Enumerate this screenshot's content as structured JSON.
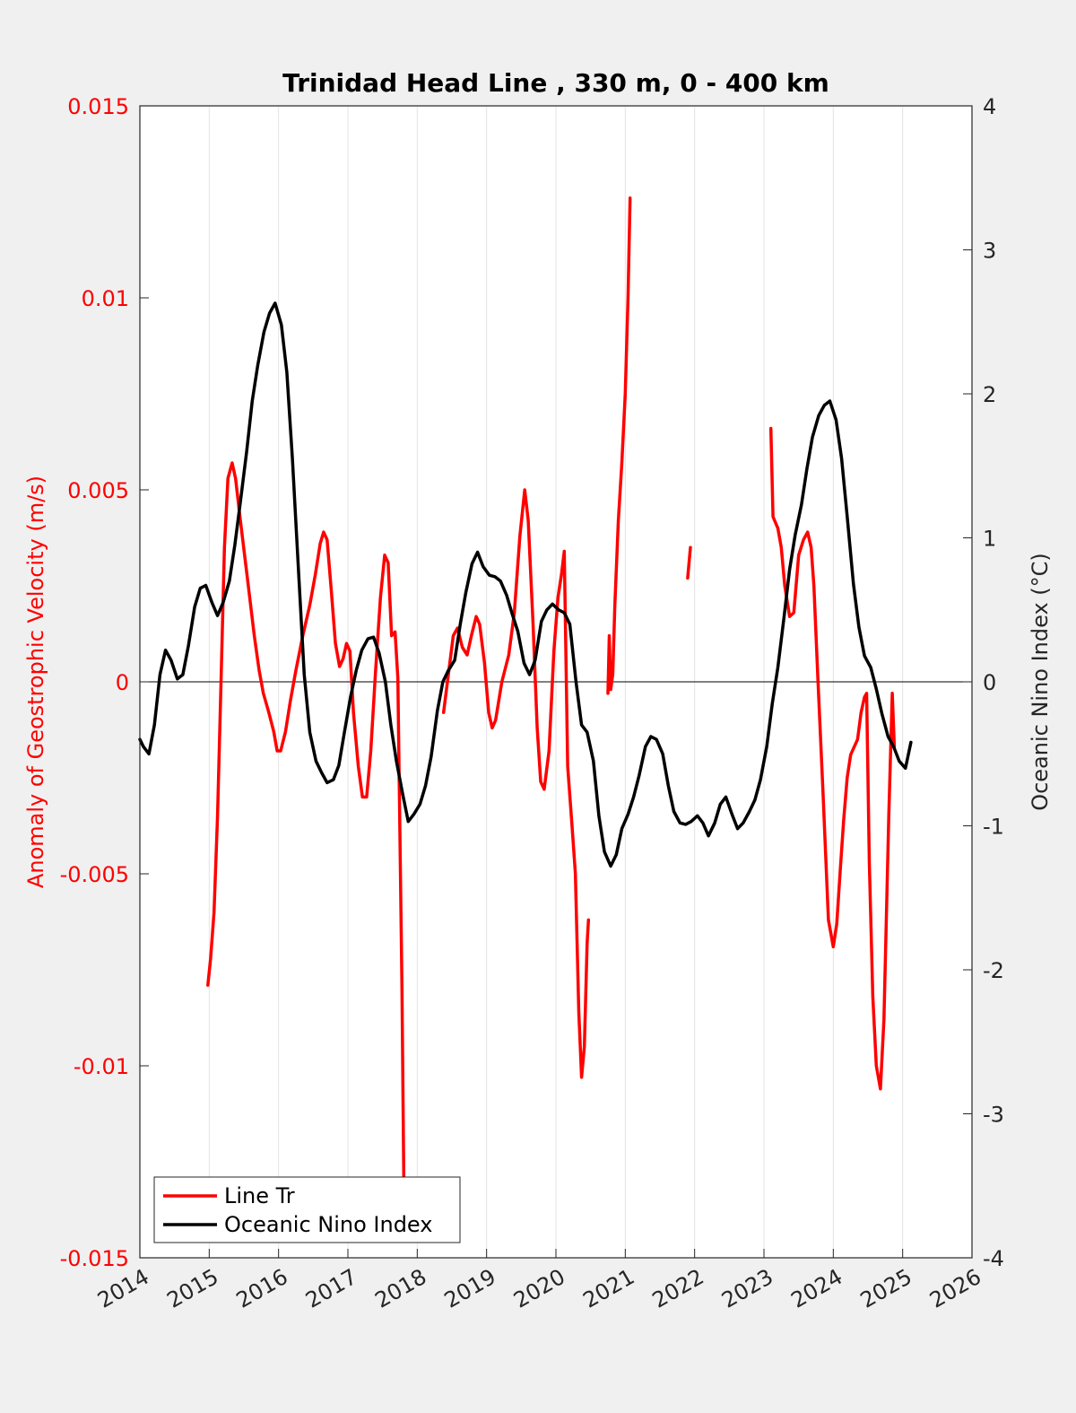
{
  "chart_data": {
    "type": "line",
    "title": "Trinidad Head Line , 330 m, 0 - 400 km",
    "ylabel_left": "Anomaly of Geostrophic Velocity (m/s)",
    "ylabel_right": "Oceanic Nino Index (°C)",
    "xlabel": "",
    "xlim": [
      2014,
      2026
    ],
    "ylim_left": [
      -0.015,
      0.015
    ],
    "ylim_right": [
      -4,
      4
    ],
    "x_ticks": [
      "2014",
      "2015",
      "2016",
      "2017",
      "2018",
      "2019",
      "2020",
      "2021",
      "2022",
      "2023",
      "2024",
      "2025",
      "2026"
    ],
    "y_ticks_left": [
      "0.015",
      "0.01",
      "0.005",
      "0",
      "-0.005",
      "-0.01",
      "-0.015"
    ],
    "y_ticks_right": [
      "4",
      "3",
      "2",
      "1",
      "0",
      "-1",
      "-2",
      "-3",
      "-4"
    ],
    "grid": "vertical",
    "legend_position": "bottom-left",
    "colors": {
      "line_tr": "#ff0000",
      "oni": "#000000",
      "left_axis": "#ff0000",
      "right_axis": "#262626"
    },
    "series": [
      {
        "name": "Line Tr",
        "axis": "left",
        "segments": [
          [
            [
              2014.98,
              -0.0079
            ],
            [
              2015.02,
              -0.0072
            ],
            [
              2015.07,
              -0.006
            ],
            [
              2015.12,
              -0.0035
            ],
            [
              2015.17,
              0.0
            ],
            [
              2015.22,
              0.0035
            ],
            [
              2015.27,
              0.0053
            ],
            [
              2015.33,
              0.0057
            ],
            [
              2015.38,
              0.0053
            ],
            [
              2015.45,
              0.0042
            ],
            [
              2015.55,
              0.0027
            ],
            [
              2015.65,
              0.0012
            ],
            [
              2015.72,
              0.0003
            ],
            [
              2015.78,
              -0.0003
            ],
            [
              2015.86,
              -0.0008
            ],
            [
              2015.93,
              -0.0013
            ],
            [
              2015.98,
              -0.0018
            ],
            [
              2016.03,
              -0.0018
            ],
            [
              2016.1,
              -0.0013
            ],
            [
              2016.17,
              -0.0005
            ],
            [
              2016.25,
              0.0003
            ],
            [
              2016.35,
              0.0012
            ],
            [
              2016.45,
              0.002
            ],
            [
              2016.53,
              0.0028
            ],
            [
              2016.6,
              0.0036
            ],
            [
              2016.65,
              0.0039
            ],
            [
              2016.7,
              0.0037
            ],
            [
              2016.76,
              0.0024
            ],
            [
              2016.82,
              0.001
            ],
            [
              2016.88,
              0.0004
            ],
            [
              2016.93,
              0.0006
            ],
            [
              2016.98,
              0.001
            ],
            [
              2017.03,
              0.0008
            ],
            [
              2017.08,
              -0.0008
            ],
            [
              2017.15,
              -0.0022
            ],
            [
              2017.21,
              -0.003
            ],
            [
              2017.27,
              -0.003
            ],
            [
              2017.33,
              -0.0018
            ],
            [
              2017.4,
              0.0003
            ],
            [
              2017.47,
              0.0022
            ],
            [
              2017.53,
              0.0033
            ],
            [
              2017.58,
              0.0031
            ],
            [
              2017.63,
              0.0012
            ],
            [
              2017.68,
              0.0013
            ],
            [
              2017.72,
              0.0001
            ],
            [
              2017.78,
              -0.008
            ],
            [
              2017.81,
              -0.0136
            ]
          ],
          [
            [
              2018.38,
              -0.0008
            ],
            [
              2018.45,
              0.0002
            ],
            [
              2018.52,
              0.0012
            ],
            [
              2018.58,
              0.0014
            ],
            [
              2018.65,
              0.0009
            ],
            [
              2018.72,
              0.0007
            ],
            [
              2018.78,
              0.0012
            ],
            [
              2018.85,
              0.0017
            ],
            [
              2018.9,
              0.0015
            ],
            [
              2018.97,
              0.0005
            ],
            [
              2019.03,
              -0.0008
            ],
            [
              2019.08,
              -0.0012
            ],
            [
              2019.13,
              -0.001
            ],
            [
              2019.22,
              0.0
            ],
            [
              2019.32,
              0.0007
            ],
            [
              2019.4,
              0.0018
            ],
            [
              2019.48,
              0.0038
            ],
            [
              2019.55,
              0.005
            ],
            [
              2019.6,
              0.0042
            ],
            [
              2019.67,
              0.0015
            ],
            [
              2019.73,
              -0.0012
            ],
            [
              2019.78,
              -0.0026
            ],
            [
              2019.83,
              -0.0028
            ],
            [
              2019.9,
              -0.0018
            ],
            [
              2019.97,
              0.0008
            ],
            [
              2020.03,
              0.0022
            ],
            [
              2020.08,
              0.0028
            ],
            [
              2020.12,
              0.0034
            ],
            [
              2020.17,
              -0.0022
            ],
            [
              2020.23,
              -0.0037
            ],
            [
              2020.28,
              -0.005
            ],
            [
              2020.33,
              -0.0086
            ],
            [
              2020.37,
              -0.0103
            ],
            [
              2020.41,
              -0.0095
            ],
            [
              2020.45,
              -0.0068
            ],
            [
              2020.47,
              -0.0062
            ]
          ],
          [
            [
              2020.75,
              -0.0003
            ],
            [
              2020.77,
              0.0012
            ],
            [
              2020.79,
              -0.0002
            ],
            [
              2020.82,
              0.0002
            ],
            [
              2020.85,
              0.002
            ],
            [
              2020.9,
              0.0042
            ],
            [
              2020.95,
              0.0057
            ],
            [
              2021.0,
              0.0075
            ],
            [
              2021.04,
              0.01
            ],
            [
              2021.07,
              0.0126
            ]
          ],
          [
            [
              2021.9,
              0.0027
            ],
            [
              2021.94,
              0.0035
            ]
          ],
          [
            [
              2023.1,
              0.0066
            ],
            [
              2023.13,
              0.0043
            ],
            [
              2023.2,
              0.004
            ],
            [
              2023.25,
              0.0035
            ],
            [
              2023.3,
              0.0025
            ],
            [
              2023.37,
              0.0017
            ],
            [
              2023.43,
              0.0018
            ],
            [
              2023.5,
              0.0033
            ],
            [
              2023.57,
              0.0037
            ],
            [
              2023.63,
              0.0039
            ],
            [
              2023.68,
              0.0035
            ],
            [
              2023.72,
              0.0025
            ],
            [
              2023.78,
              0.0
            ],
            [
              2023.85,
              -0.0028
            ],
            [
              2023.93,
              -0.0062
            ],
            [
              2024.0,
              -0.0069
            ],
            [
              2024.05,
              -0.0063
            ],
            [
              2024.1,
              -0.0049
            ],
            [
              2024.15,
              -0.0036
            ],
            [
              2024.2,
              -0.0025
            ],
            [
              2024.25,
              -0.0019
            ],
            [
              2024.3,
              -0.0017
            ],
            [
              2024.35,
              -0.0015
            ],
            [
              2024.4,
              -0.0008
            ],
            [
              2024.45,
              -0.0004
            ],
            [
              2024.48,
              -0.0003
            ],
            [
              2024.52,
              -0.0047
            ],
            [
              2024.57,
              -0.0082
            ],
            [
              2024.62,
              -0.01
            ],
            [
              2024.68,
              -0.0106
            ],
            [
              2024.73,
              -0.0088
            ],
            [
              2024.8,
              -0.0035
            ],
            [
              2024.85,
              -0.0003
            ],
            [
              2024.88,
              -0.0017
            ]
          ]
        ]
      },
      {
        "name": "Oceanic Nino Index",
        "axis": "right",
        "points": [
          [
            2014.0,
            -0.4
          ],
          [
            2014.05,
            -0.45
          ],
          [
            2014.13,
            -0.5
          ],
          [
            2014.21,
            -0.3
          ],
          [
            2014.29,
            0.05
          ],
          [
            2014.37,
            0.22
          ],
          [
            2014.45,
            0.15
          ],
          [
            2014.54,
            0.02
          ],
          [
            2014.62,
            0.05
          ],
          [
            2014.7,
            0.25
          ],
          [
            2014.79,
            0.52
          ],
          [
            2014.87,
            0.65
          ],
          [
            2014.95,
            0.67
          ],
          [
            2015.04,
            0.55
          ],
          [
            2015.12,
            0.46
          ],
          [
            2015.2,
            0.55
          ],
          [
            2015.29,
            0.7
          ],
          [
            2015.37,
            0.95
          ],
          [
            2015.45,
            1.25
          ],
          [
            2015.54,
            1.6
          ],
          [
            2015.62,
            1.95
          ],
          [
            2015.7,
            2.2
          ],
          [
            2015.79,
            2.43
          ],
          [
            2015.87,
            2.56
          ],
          [
            2015.95,
            2.63
          ],
          [
            2016.04,
            2.48
          ],
          [
            2016.12,
            2.15
          ],
          [
            2016.2,
            1.55
          ],
          [
            2016.29,
            0.75
          ],
          [
            2016.37,
            0.05
          ],
          [
            2016.45,
            -0.35
          ],
          [
            2016.54,
            -0.55
          ],
          [
            2016.62,
            -0.63
          ],
          [
            2016.7,
            -0.7
          ],
          [
            2016.79,
            -0.68
          ],
          [
            2016.87,
            -0.58
          ],
          [
            2016.95,
            -0.35
          ],
          [
            2017.04,
            -0.1
          ],
          [
            2017.12,
            0.08
          ],
          [
            2017.2,
            0.22
          ],
          [
            2017.29,
            0.3
          ],
          [
            2017.37,
            0.31
          ],
          [
            2017.45,
            0.2
          ],
          [
            2017.54,
            0.0
          ],
          [
            2017.62,
            -0.3
          ],
          [
            2017.7,
            -0.55
          ],
          [
            2017.79,
            -0.78
          ],
          [
            2017.87,
            -0.97
          ],
          [
            2017.95,
            -0.92
          ],
          [
            2018.04,
            -0.85
          ],
          [
            2018.12,
            -0.72
          ],
          [
            2018.2,
            -0.52
          ],
          [
            2018.29,
            -0.2
          ],
          [
            2018.37,
            0.0
          ],
          [
            2018.45,
            0.08
          ],
          [
            2018.54,
            0.15
          ],
          [
            2018.62,
            0.4
          ],
          [
            2018.7,
            0.62
          ],
          [
            2018.79,
            0.82
          ],
          [
            2018.87,
            0.9
          ],
          [
            2018.95,
            0.8
          ],
          [
            2019.04,
            0.74
          ],
          [
            2019.12,
            0.73
          ],
          [
            2019.2,
            0.7
          ],
          [
            2019.29,
            0.6
          ],
          [
            2019.37,
            0.47
          ],
          [
            2019.45,
            0.35
          ],
          [
            2019.54,
            0.13
          ],
          [
            2019.62,
            0.05
          ],
          [
            2019.7,
            0.15
          ],
          [
            2019.79,
            0.42
          ],
          [
            2019.87,
            0.5
          ],
          [
            2019.95,
            0.54
          ],
          [
            2020.04,
            0.5
          ],
          [
            2020.12,
            0.48
          ],
          [
            2020.2,
            0.4
          ],
          [
            2020.29,
            0.0
          ],
          [
            2020.37,
            -0.3
          ],
          [
            2020.45,
            -0.35
          ],
          [
            2020.54,
            -0.55
          ],
          [
            2020.62,
            -0.93
          ],
          [
            2020.7,
            -1.18
          ],
          [
            2020.79,
            -1.28
          ],
          [
            2020.87,
            -1.2
          ],
          [
            2020.95,
            -1.02
          ],
          [
            2021.04,
            -0.92
          ],
          [
            2021.12,
            -0.8
          ],
          [
            2021.2,
            -0.65
          ],
          [
            2021.29,
            -0.45
          ],
          [
            2021.37,
            -0.38
          ],
          [
            2021.45,
            -0.4
          ],
          [
            2021.54,
            -0.5
          ],
          [
            2021.62,
            -0.72
          ],
          [
            2021.7,
            -0.9
          ],
          [
            2021.79,
            -0.98
          ],
          [
            2021.87,
            -0.99
          ],
          [
            2021.95,
            -0.97
          ],
          [
            2022.04,
            -0.93
          ],
          [
            2022.12,
            -0.98
          ],
          [
            2022.2,
            -1.07
          ],
          [
            2022.29,
            -0.98
          ],
          [
            2022.37,
            -0.85
          ],
          [
            2022.45,
            -0.8
          ],
          [
            2022.54,
            -0.92
          ],
          [
            2022.62,
            -1.02
          ],
          [
            2022.7,
            -0.98
          ],
          [
            2022.79,
            -0.9
          ],
          [
            2022.87,
            -0.82
          ],
          [
            2022.95,
            -0.68
          ],
          [
            2023.04,
            -0.45
          ],
          [
            2023.12,
            -0.15
          ],
          [
            2023.2,
            0.1
          ],
          [
            2023.29,
            0.45
          ],
          [
            2023.37,
            0.78
          ],
          [
            2023.45,
            1.02
          ],
          [
            2023.54,
            1.23
          ],
          [
            2023.62,
            1.48
          ],
          [
            2023.7,
            1.7
          ],
          [
            2023.79,
            1.85
          ],
          [
            2023.87,
            1.92
          ],
          [
            2023.95,
            1.95
          ],
          [
            2024.04,
            1.82
          ],
          [
            2024.12,
            1.55
          ],
          [
            2024.2,
            1.15
          ],
          [
            2024.29,
            0.68
          ],
          [
            2024.37,
            0.38
          ],
          [
            2024.45,
            0.18
          ],
          [
            2024.54,
            0.1
          ],
          [
            2024.62,
            -0.05
          ],
          [
            2024.7,
            -0.22
          ],
          [
            2024.79,
            -0.38
          ],
          [
            2024.87,
            -0.45
          ],
          [
            2024.95,
            -0.55
          ],
          [
            2025.04,
            -0.6
          ],
          [
            2025.12,
            -0.42
          ]
        ]
      }
    ]
  }
}
